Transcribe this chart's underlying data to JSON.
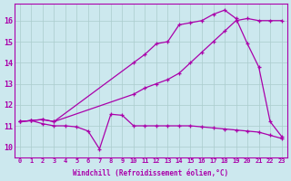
{
  "bg_color": "#cce8ee",
  "line_color": "#aa00aa",
  "grid_color": "#aacccc",
  "xlabel": "Windchill (Refroidissement éolien,°C)",
  "ylabel_ticks": [
    10,
    11,
    12,
    13,
    14,
    15,
    16
  ],
  "xlim": [
    -0.5,
    23.5
  ],
  "ylim": [
    9.5,
    16.8
  ],
  "series": [
    {
      "x": [
        0,
        1,
        2,
        3,
        10,
        11,
        12,
        13,
        14,
        15,
        16,
        17,
        18,
        19,
        20,
        21,
        22,
        23
      ],
      "y": [
        11.2,
        11.25,
        11.3,
        11.2,
        14.0,
        14.4,
        14.9,
        15.0,
        15.8,
        15.9,
        16.0,
        16.3,
        16.5,
        16.1,
        14.9,
        13.8,
        11.2,
        10.5
      ]
    },
    {
      "x": [
        0,
        1,
        2,
        3,
        10,
        11,
        12,
        13,
        14,
        15,
        16,
        17,
        18,
        19,
        20,
        21,
        22,
        23
      ],
      "y": [
        11.2,
        11.25,
        11.3,
        11.2,
        12.5,
        12.8,
        13.0,
        13.2,
        13.5,
        14.0,
        14.5,
        15.0,
        15.5,
        16.0,
        16.1,
        16.0,
        16.0,
        16.0
      ]
    },
    {
      "x": [
        0,
        1,
        2,
        3,
        4,
        5,
        6,
        7,
        8,
        9,
        10,
        11,
        12,
        13,
        14,
        15,
        16,
        17,
        18,
        19,
        20,
        21,
        22,
        23
      ],
      "y": [
        11.2,
        11.25,
        11.1,
        11.0,
        11.0,
        10.95,
        10.75,
        9.9,
        11.55,
        11.5,
        11.0,
        11.0,
        11.0,
        11.0,
        11.0,
        11.0,
        10.95,
        10.9,
        10.85,
        10.8,
        10.75,
        10.7,
        10.55,
        10.4
      ]
    }
  ],
  "xticks": [
    0,
    1,
    2,
    3,
    4,
    5,
    6,
    7,
    8,
    9,
    10,
    11,
    12,
    13,
    14,
    15,
    16,
    17,
    18,
    19,
    20,
    21,
    22,
    23
  ],
  "marker": "+",
  "markersize": 3.5,
  "linewidth": 0.9
}
